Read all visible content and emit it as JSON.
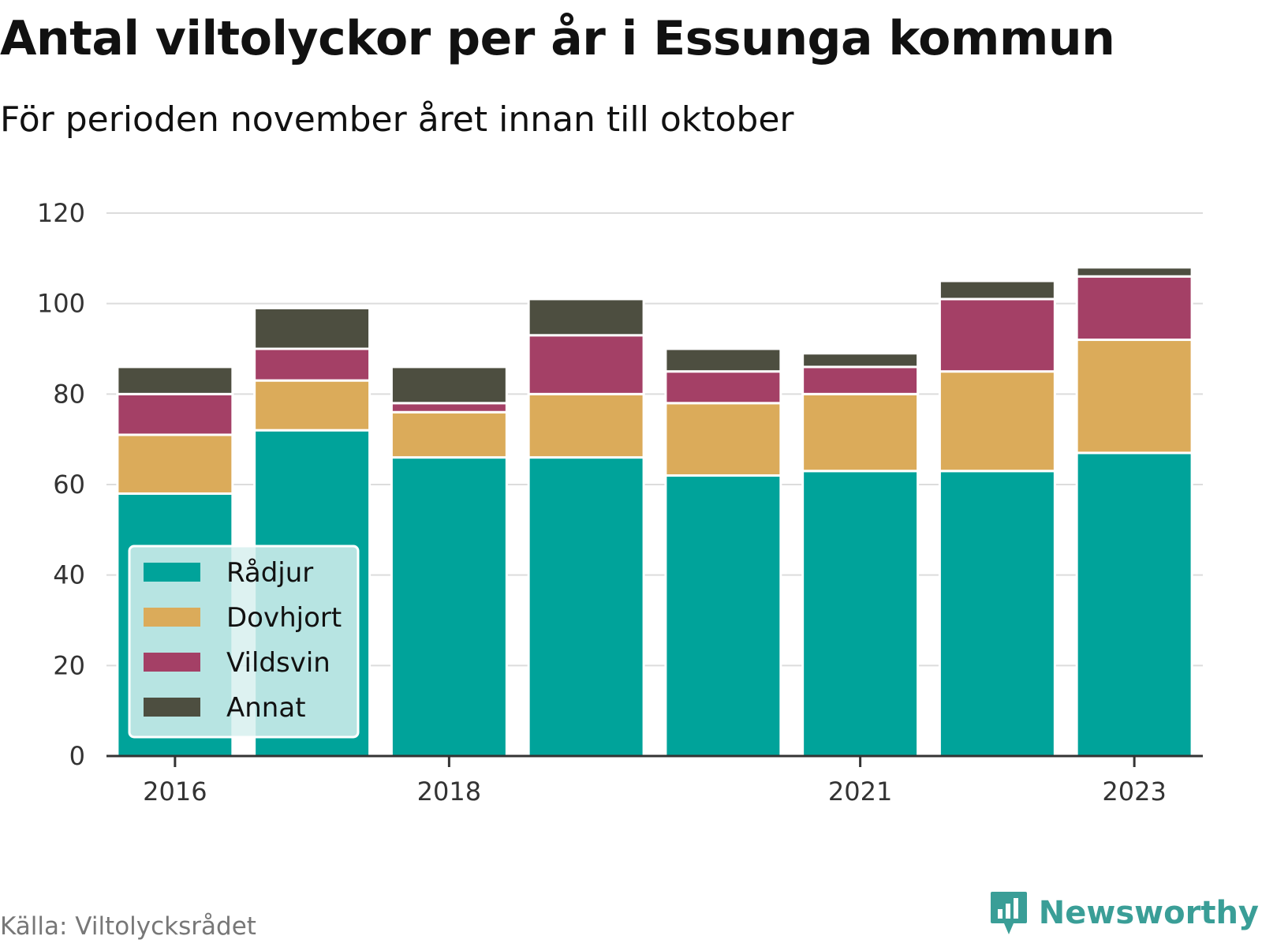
{
  "header": {
    "title": "Antal viltolyckor per år i Essunga kommun",
    "subtitle": "För perioden november året innan till oktober"
  },
  "footer": {
    "source": "Källa: Viltolycksrådet",
    "brand": "Newsworthy",
    "brand_icon": "bar-chart-speech-icon",
    "brand_color": "#3a9e97"
  },
  "chart_data": {
    "type": "bar",
    "stacked": true,
    "categories": [
      "2016",
      "2017",
      "2018",
      "2019",
      "2020",
      "2021",
      "2022",
      "2023"
    ],
    "x_tick_labels": [
      "2016",
      "",
      "2018",
      "",
      "",
      "2021",
      "",
      "2023"
    ],
    "series": [
      {
        "name": "Rådjur",
        "color": "#00a39a",
        "values": [
          58,
          72,
          66,
          66,
          62,
          63,
          63,
          67
        ]
      },
      {
        "name": "Dovhjort",
        "color": "#dbab5a",
        "values": [
          13,
          11,
          10,
          14,
          16,
          17,
          22,
          25
        ]
      },
      {
        "name": "Vildsvin",
        "color": "#a44066",
        "values": [
          9,
          7,
          2,
          13,
          7,
          6,
          16,
          14
        ]
      },
      {
        "name": "Annat",
        "color": "#4d4e40",
        "values": [
          6,
          9,
          8,
          8,
          5,
          3,
          4,
          2
        ]
      }
    ],
    "yticks": [
      0,
      20,
      40,
      60,
      80,
      100,
      120
    ],
    "ylim": [
      0,
      120
    ],
    "grid": true,
    "legend_position": "bottom-left, inside plot"
  }
}
